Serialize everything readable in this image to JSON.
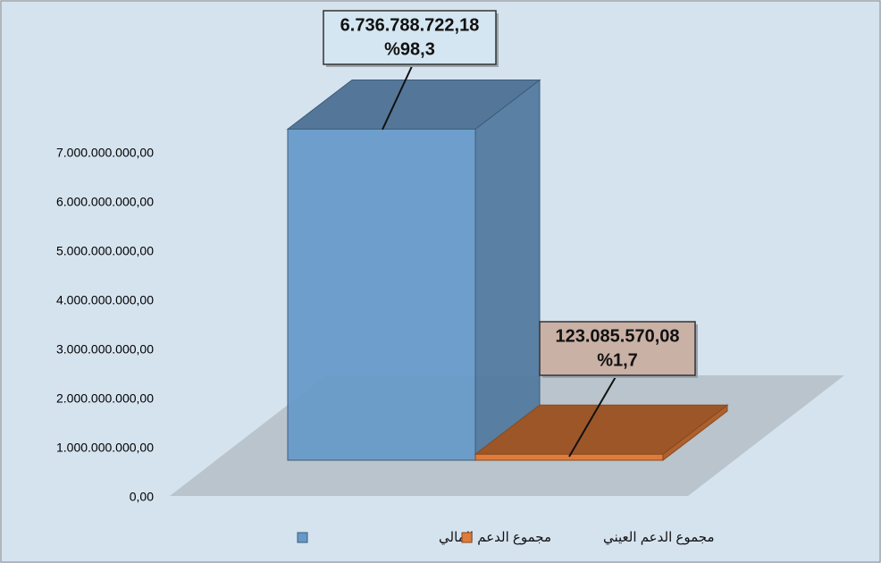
{
  "chart_data": {
    "type": "bar3d",
    "series": [
      {
        "name": "مجموع الدعم المالي",
        "color": "#6599c9",
        "values": [
          6736788722.18
        ],
        "value_labels": [
          "6.736.788.722,18"
        ],
        "percent_labels": [
          "%98,3"
        ]
      },
      {
        "name": "مجموع الدعم العيني",
        "color": "#e07b39",
        "values": [
          123085570.08
        ],
        "value_labels": [
          "123.085.570,08"
        ],
        "percent_labels": [
          "%1,7"
        ]
      }
    ],
    "ylim": [
      0,
      7000000000
    ],
    "yticks": [
      {
        "value": 0,
        "label": "0,00"
      },
      {
        "value": 1000000000,
        "label": "1.000.000.000,00"
      },
      {
        "value": 2000000000,
        "label": "2.000.000.000,00"
      },
      {
        "value": 3000000000,
        "label": "3.000.000.000,00"
      },
      {
        "value": 4000000000,
        "label": "4.000.000.000,00"
      },
      {
        "value": 5000000000,
        "label": "5.000.000.000,00"
      },
      {
        "value": 6000000000,
        "label": "6.000.000.000,00"
      },
      {
        "value": 7000000000,
        "label": "7.000.000.000,00"
      }
    ],
    "legend": "bottom"
  }
}
